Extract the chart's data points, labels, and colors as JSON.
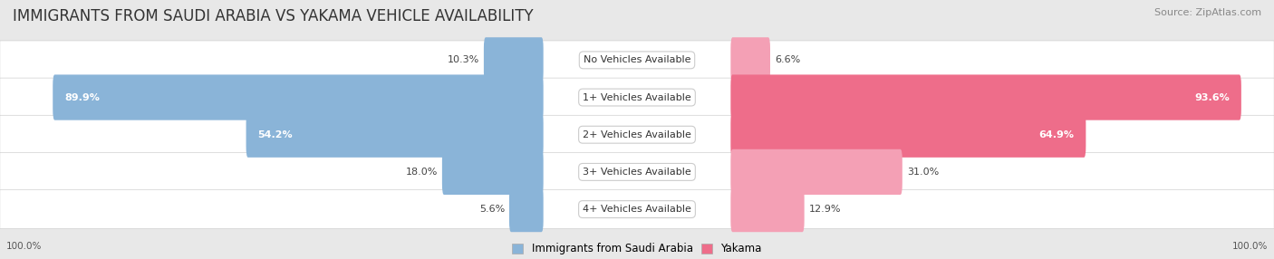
{
  "title": "IMMIGRANTS FROM SAUDI ARABIA VS YAKAMA VEHICLE AVAILABILITY",
  "source": "Source: ZipAtlas.com",
  "categories": [
    "No Vehicles Available",
    "1+ Vehicles Available",
    "2+ Vehicles Available",
    "3+ Vehicles Available",
    "4+ Vehicles Available"
  ],
  "saudi_values": [
    10.3,
    89.9,
    54.2,
    18.0,
    5.6
  ],
  "yakama_values": [
    6.6,
    93.6,
    64.9,
    31.0,
    12.9
  ],
  "saudi_color": "#8ab4d8",
  "yakama_color": "#ee6d8a",
  "yakama_color_light": "#f4a0b5",
  "label_saudi": "Immigrants from Saudi Arabia",
  "label_yakama": "Yakama",
  "bar_height": 0.62,
  "max_value": 100.0,
  "background_color": "#e8e8e8",
  "row_bg_color": "#f5f5f5",
  "title_fontsize": 12,
  "source_fontsize": 8
}
